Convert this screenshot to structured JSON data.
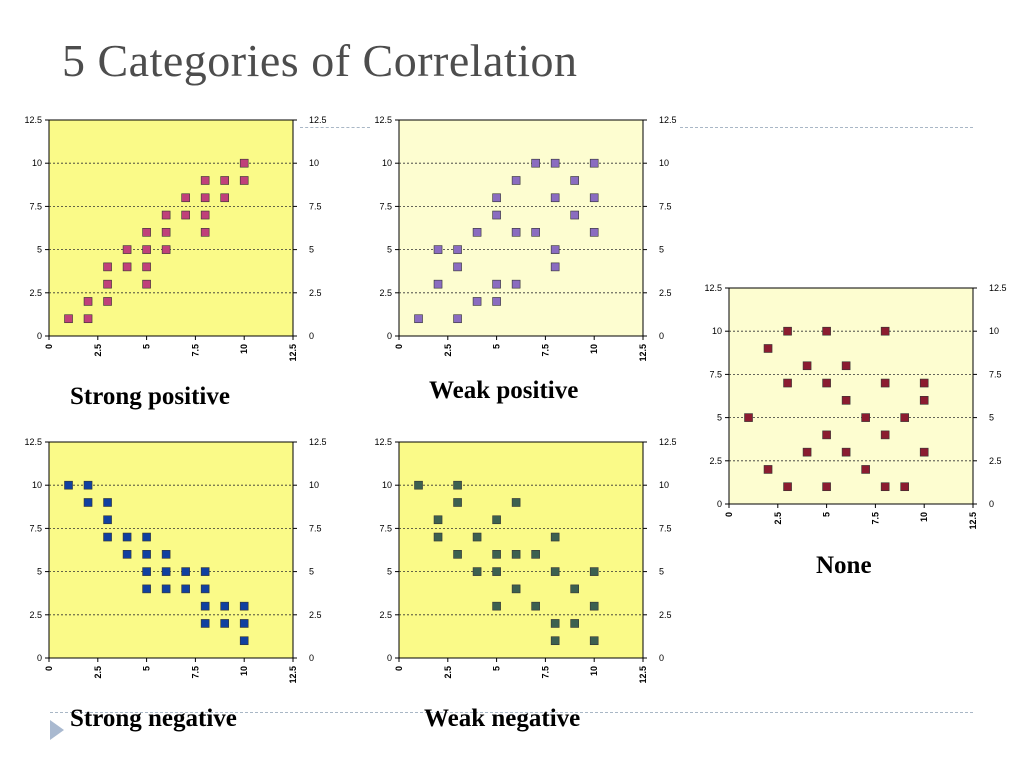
{
  "title": "5 Categories of Correlation",
  "charts": [
    {
      "caption": "Strong positive",
      "chart_data": {
        "type": "scatter",
        "xlim": [
          0,
          12.5
        ],
        "ylim": [
          0,
          12.5
        ],
        "x_ticks": [
          "0",
          "2.5",
          "5",
          "7.5",
          "10",
          "12.5"
        ],
        "y_ticks": [
          "0",
          "2.5",
          "5",
          "7.5",
          "10",
          "12.5"
        ],
        "grid": "horizontal dashed",
        "background": "#fafa88",
        "marker_color": "#c0407a",
        "points": [
          [
            1,
            1
          ],
          [
            2,
            1
          ],
          [
            2,
            2
          ],
          [
            3,
            2
          ],
          [
            3,
            3
          ],
          [
            3,
            4
          ],
          [
            4,
            4
          ],
          [
            4,
            5
          ],
          [
            5,
            3
          ],
          [
            5,
            4
          ],
          [
            5,
            5
          ],
          [
            5,
            6
          ],
          [
            6,
            5
          ],
          [
            6,
            6
          ],
          [
            6,
            7
          ],
          [
            7,
            7
          ],
          [
            7,
            8
          ],
          [
            8,
            6
          ],
          [
            8,
            7
          ],
          [
            8,
            8
          ],
          [
            8,
            9
          ],
          [
            9,
            8
          ],
          [
            9,
            9
          ],
          [
            10,
            9
          ],
          [
            10,
            10
          ]
        ]
      }
    },
    {
      "caption": "Weak positive",
      "chart_data": {
        "type": "scatter",
        "xlim": [
          0,
          12.5
        ],
        "ylim": [
          0,
          12.5
        ],
        "x_ticks": [
          "0",
          "2.5",
          "5",
          "7.5",
          "10",
          "12.5"
        ],
        "y_ticks": [
          "0",
          "2.5",
          "5",
          "7.5",
          "10",
          "12.5"
        ],
        "grid": "horizontal dashed",
        "background": "#fdfdd0",
        "marker_color": "#8a6cc0",
        "points": [
          [
            1,
            1
          ],
          [
            2,
            3
          ],
          [
            2,
            5
          ],
          [
            3,
            1
          ],
          [
            3,
            4
          ],
          [
            3,
            5
          ],
          [
            4,
            2
          ],
          [
            4,
            6
          ],
          [
            5,
            2
          ],
          [
            5,
            3
          ],
          [
            5,
            7
          ],
          [
            5,
            8
          ],
          [
            6,
            3
          ],
          [
            6,
            6
          ],
          [
            6,
            9
          ],
          [
            7,
            6
          ],
          [
            7,
            10
          ],
          [
            8,
            4
          ],
          [
            8,
            5
          ],
          [
            8,
            8
          ],
          [
            8,
            10
          ],
          [
            9,
            7
          ],
          [
            9,
            9
          ],
          [
            10,
            6
          ],
          [
            10,
            8
          ],
          [
            10,
            10
          ]
        ]
      }
    },
    {
      "caption": "None",
      "chart_data": {
        "type": "scatter",
        "xlim": [
          0,
          12.5
        ],
        "ylim": [
          0,
          12.5
        ],
        "x_ticks": [
          "0",
          "2.5",
          "5",
          "7.5",
          "10",
          "12.5"
        ],
        "y_ticks": [
          "0",
          "2.5",
          "5",
          "7.5",
          "10",
          "12.5"
        ],
        "grid": "horizontal dashed",
        "background": "#fdfdd0",
        "marker_color": "#8b1c30",
        "points": [
          [
            1,
            5
          ],
          [
            2,
            2
          ],
          [
            2,
            9
          ],
          [
            3,
            1
          ],
          [
            3,
            7
          ],
          [
            3,
            10
          ],
          [
            4,
            3
          ],
          [
            4,
            8
          ],
          [
            5,
            1
          ],
          [
            5,
            4
          ],
          [
            5,
            7
          ],
          [
            5,
            10
          ],
          [
            6,
            3
          ],
          [
            6,
            6
          ],
          [
            6,
            8
          ],
          [
            7,
            2
          ],
          [
            7,
            5
          ],
          [
            8,
            1
          ],
          [
            8,
            4
          ],
          [
            8,
            7
          ],
          [
            8,
            10
          ],
          [
            9,
            1
          ],
          [
            9,
            5
          ],
          [
            10,
            3
          ],
          [
            10,
            6
          ],
          [
            10,
            7
          ]
        ]
      }
    },
    {
      "caption": "Strong negative",
      "chart_data": {
        "type": "scatter",
        "xlim": [
          0,
          12.5
        ],
        "ylim": [
          0,
          12.5
        ],
        "x_ticks": [
          "0",
          "2.5",
          "5",
          "7.5",
          "10",
          "12.5"
        ],
        "y_ticks": [
          "0",
          "2.5",
          "5",
          "7.5",
          "10",
          "12.5"
        ],
        "grid": "horizontal dashed",
        "background": "#fafa88",
        "marker_color": "#1040a0",
        "points": [
          [
            1,
            10
          ],
          [
            2,
            9
          ],
          [
            2,
            10
          ],
          [
            3,
            7
          ],
          [
            3,
            8
          ],
          [
            3,
            9
          ],
          [
            4,
            6
          ],
          [
            4,
            7
          ],
          [
            5,
            4
          ],
          [
            5,
            5
          ],
          [
            5,
            6
          ],
          [
            5,
            7
          ],
          [
            6,
            4
          ],
          [
            6,
            5
          ],
          [
            6,
            6
          ],
          [
            7,
            4
          ],
          [
            7,
            5
          ],
          [
            8,
            2
          ],
          [
            8,
            3
          ],
          [
            8,
            4
          ],
          [
            8,
            5
          ],
          [
            9,
            2
          ],
          [
            9,
            3
          ],
          [
            10,
            1
          ],
          [
            10,
            2
          ],
          [
            10,
            3
          ]
        ]
      }
    },
    {
      "caption": "Weak negative",
      "chart_data": {
        "type": "scatter",
        "xlim": [
          0,
          12.5
        ],
        "ylim": [
          0,
          12.5
        ],
        "x_ticks": [
          "0",
          "2.5",
          "5",
          "7.5",
          "10",
          "12.5"
        ],
        "y_ticks": [
          "0",
          "2.5",
          "5",
          "7.5",
          "10",
          "12.5"
        ],
        "grid": "horizontal dashed",
        "background": "#fafa88",
        "marker_color": "#3c6050",
        "points": [
          [
            1,
            10
          ],
          [
            2,
            7
          ],
          [
            2,
            8
          ],
          [
            3,
            6
          ],
          [
            3,
            9
          ],
          [
            3,
            10
          ],
          [
            4,
            5
          ],
          [
            4,
            7
          ],
          [
            5,
            3
          ],
          [
            5,
            5
          ],
          [
            5,
            6
          ],
          [
            5,
            8
          ],
          [
            6,
            4
          ],
          [
            6,
            6
          ],
          [
            6,
            9
          ],
          [
            7,
            3
          ],
          [
            7,
            6
          ],
          [
            8,
            1
          ],
          [
            8,
            2
          ],
          [
            8,
            5
          ],
          [
            8,
            7
          ],
          [
            9,
            2
          ],
          [
            9,
            4
          ],
          [
            10,
            1
          ],
          [
            10,
            3
          ],
          [
            10,
            5
          ]
        ]
      }
    }
  ]
}
